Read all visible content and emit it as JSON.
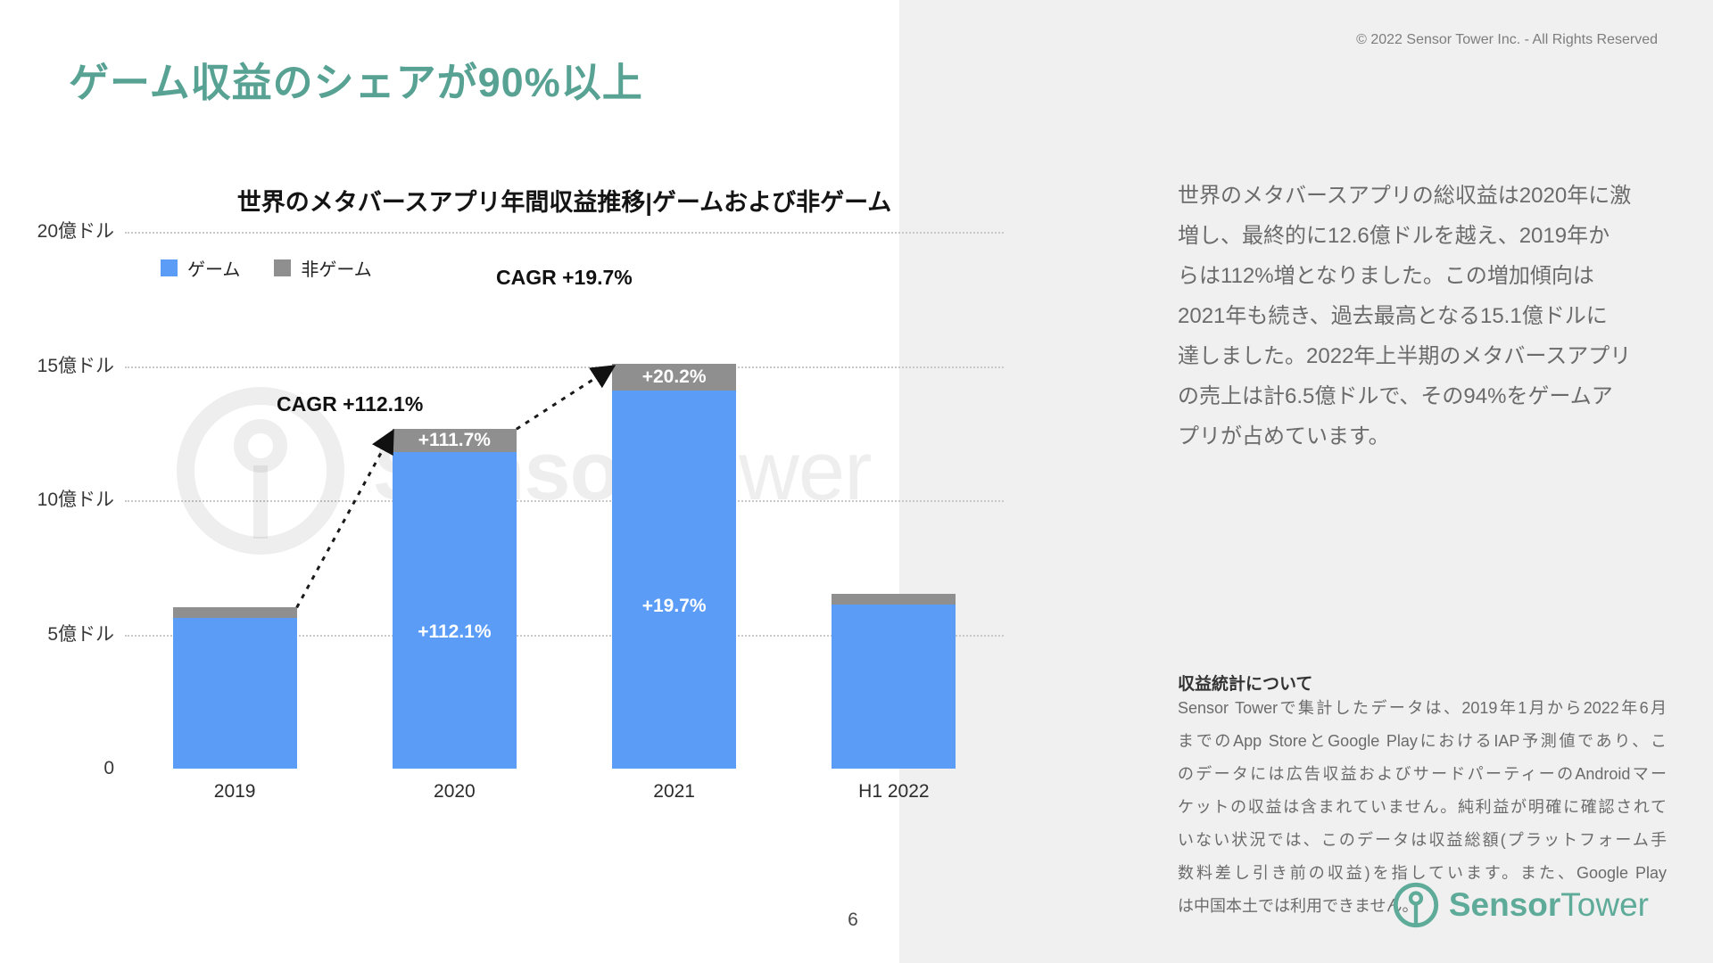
{
  "slide": {
    "title": "ゲーム収益のシェアが90%以上",
    "page_number": "6",
    "copyright": "© 2022 Sensor Tower Inc. - All Rights Reserved"
  },
  "chart_data": {
    "type": "bar",
    "stacked": true,
    "title": "世界のメタバースアプリ年間収益推移|ゲームおよび非ゲーム",
    "categories": [
      "2019",
      "2020",
      "2021",
      "H1 2022"
    ],
    "unit": "億ドル (billion USD)",
    "series": [
      {
        "name": "ゲーム",
        "color": "#5b9cf7",
        "values": [
          5.6,
          11.8,
          14.1,
          6.1
        ],
        "segment_labels": [
          "",
          "+112.1%",
          "+19.7%",
          ""
        ]
      },
      {
        "name": "非ゲーム",
        "color": "#8f8f8f",
        "values": [
          0.4,
          0.85,
          1.0,
          0.4
        ],
        "segment_labels": [
          "",
          "+111.7%",
          "+20.2%",
          ""
        ]
      }
    ],
    "totals": [
      6.0,
      12.65,
      15.1,
      6.5
    ],
    "y_axis": {
      "max": 20,
      "ticks": [
        {
          "value": 20,
          "label": "20億ドル"
        },
        {
          "value": 15,
          "label": "15億ドル"
        },
        {
          "value": 10,
          "label": "10億ドル"
        },
        {
          "value": 5,
          "label": "5億ドル"
        },
        {
          "value": 0,
          "label": "0"
        }
      ]
    },
    "gridlines": "dotted-horizontal",
    "legend_position": "top-left",
    "annotations": [
      {
        "text": "CAGR +112.1%",
        "x": 170,
        "y": 180
      },
      {
        "text": "CAGR +19.7%",
        "x": 416,
        "y": 38
      }
    ],
    "arrows": [
      {
        "from": 0,
        "to": 1
      },
      {
        "from": 1,
        "to": 2
      }
    ]
  },
  "watermark": {
    "bold": "Sensor",
    "regular": "Tower"
  },
  "sidebar": {
    "paragraph": "世界のメタバースアプリの総収益は2020年に激\n増し、最終的に12.6億ドルを越え、2019年か\nらは112%増となりました。この増加傾向は\n2021年も続き、過去最高となる15.1億ドルに\n達しました。2022年上半期のメタバースアプリ\nの売上は計6.5億ドルで、その94%をゲームア\nプリが占めています。",
    "note_title": "収益統計について",
    "note_body": "Sensor Towerで集計したデータは、2019年1月から2022年6月\nまでのApp StoreとGoogle PlayにおけるIAP予測値であり、こ\nのデータには広告収益およびサードパーティーのAndroidマー\nケットの収益は含まれていません。純利益が明確に確認されて\nいない状況では、このデータは収益総額(プラットフォーム手\n数料差し引き前の収益)を指しています。また、Google Play\nは中国本土では利用できません。"
  },
  "logo": {
    "bold": "Sensor",
    "regular": "Tower"
  },
  "colors": {
    "accent_teal": "#58a294",
    "game_blue": "#5b9cf7",
    "nongame_gray": "#8f8f8f",
    "panel_bg": "#f0f0f0",
    "logo_teal": "#5fab99"
  }
}
